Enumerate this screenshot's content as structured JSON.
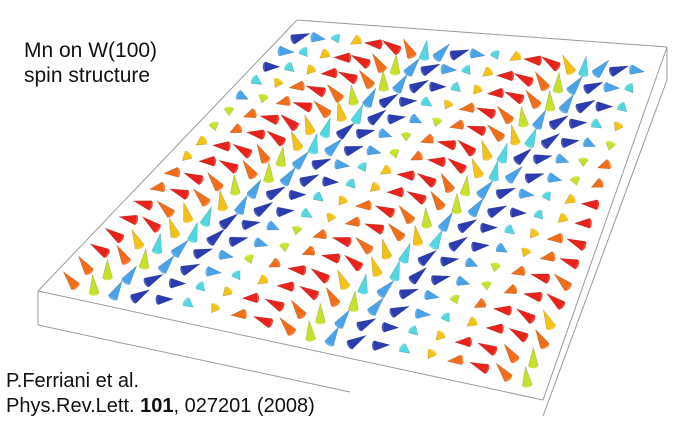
{
  "title": {
    "line1": "Mn on W(100)",
    "line2": "spin structure"
  },
  "citation": {
    "authors": "P.Ferriani et al.",
    "journal": "Phys.Rev.Lett.",
    "volume": "101",
    "page_year": "027201 (2008)"
  },
  "lattice": {
    "rows": 17,
    "cols": 20,
    "period_cols": 9,
    "colors": [
      "#e8231c",
      "#f06d1a",
      "#f2c316",
      "#c8e02a",
      "#52d6e0",
      "#4aa3e8",
      "#2b3bb0"
    ]
  },
  "icons": {
    "cone": "spin-cone-icon"
  }
}
